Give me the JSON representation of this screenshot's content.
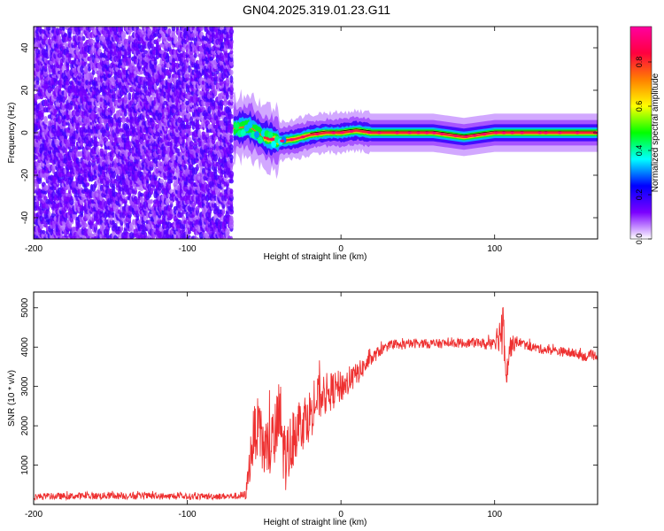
{
  "title": "GN04.2025.319.01.23.G11",
  "chart_data": [
    {
      "type": "heatmap",
      "xlabel": "Height of straight line (km)",
      "ylabel": "Frequency (Hz)",
      "xlim": [
        -200,
        167
      ],
      "ylim": [
        -50,
        50
      ],
      "x_ticks": [
        -200,
        -100,
        0,
        100
      ],
      "y_ticks": [
        -40,
        -20,
        0,
        20,
        40
      ],
      "noise_region_x": [
        -200,
        -70
      ],
      "ridge_frequency": 0,
      "ridge": {
        "x": [
          -70,
          -60,
          -50,
          -40,
          -30,
          -20,
          -10,
          0,
          10,
          20,
          40,
          60,
          80,
          90,
          100,
          120,
          140,
          167
        ],
        "f": [
          2,
          3,
          -2,
          -4,
          -3,
          -1,
          0,
          0,
          1,
          0,
          0,
          0,
          -2,
          -1,
          0,
          0,
          0,
          0
        ]
      },
      "colorbar": {
        "label": "Normalized spectral amplitude",
        "ticks": [
          0.0,
          0.2,
          0.4,
          0.6,
          0.8
        ],
        "range": [
          0,
          0.96
        ],
        "colors": [
          "#ffffff",
          "#7b00ff",
          "#0000ff",
          "#00ffff",
          "#00ff00",
          "#ffff00",
          "#ff8000",
          "#ff0040",
          "#ff00a0"
        ]
      },
      "grid": false
    },
    {
      "type": "line",
      "xlabel": "Height of straight line (km)",
      "ylabel": "SNR (10 * v/v)",
      "xlim": [
        -200,
        167
      ],
      "ylim": [
        0,
        5400
      ],
      "x_ticks": [
        -200,
        -100,
        0,
        100
      ],
      "y_ticks": [
        1000,
        2000,
        3000,
        4000,
        5000
      ],
      "series": [
        {
          "color": "#ee3030",
          "x": [
            -200,
            -150,
            -100,
            -70,
            -62,
            -58,
            -55,
            -50,
            -45,
            -42,
            -40,
            -37,
            -35,
            -30,
            -25,
            -20,
            -15,
            -10,
            -5,
            0,
            5,
            10,
            15,
            20,
            25,
            30,
            40,
            50,
            60,
            70,
            80,
            90,
            95,
            100,
            103,
            106,
            108,
            110,
            115,
            120,
            130,
            140,
            150,
            160,
            167
          ],
          "y": [
            200,
            220,
            200,
            210,
            230,
            1500,
            2000,
            1400,
            1500,
            1800,
            2300,
            1300,
            1200,
            1900,
            2100,
            2300,
            2700,
            2800,
            2900,
            3000,
            3100,
            3300,
            3500,
            3700,
            3900,
            4000,
            4050,
            4100,
            4080,
            4100,
            4100,
            4120,
            4050,
            4200,
            4300,
            4600,
            3500,
            4000,
            4150,
            4050,
            3950,
            3900,
            3850,
            3750,
            3800
          ],
          "spread": [
            140,
            150,
            140,
            140,
            200,
            1200,
            1300,
            1400,
            1500,
            1600,
            1800,
            1600,
            1400,
            1300,
            1200,
            1100,
            1000,
            900,
            800,
            700,
            600,
            500,
            400,
            300,
            250,
            200,
            200,
            200,
            200,
            200,
            200,
            200,
            250,
            400,
            700,
            1500,
            1200,
            500,
            220,
            200,
            200,
            200,
            200,
            200,
            200
          ]
        }
      ],
      "grid": false
    }
  ]
}
